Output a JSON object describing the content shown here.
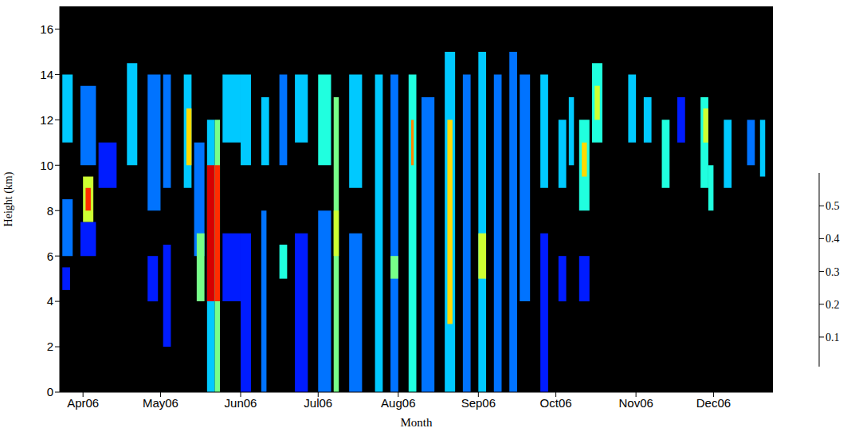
{
  "chart_data": {
    "type": "heatmap",
    "x_label": "Month",
    "y_label": "Height (km)",
    "xlim": [
      82,
      358
    ],
    "xticks": [
      {
        "value": 91,
        "label": "Apr06"
      },
      {
        "value": 121,
        "label": "May06"
      },
      {
        "value": 152,
        "label": "Jun06"
      },
      {
        "value": 182,
        "label": "Jul06"
      },
      {
        "value": 213,
        "label": "Aug06"
      },
      {
        "value": 244,
        "label": "Sep06"
      },
      {
        "value": 274,
        "label": "Oct06"
      },
      {
        "value": 305,
        "label": "Nov06"
      },
      {
        "value": 335,
        "label": "Dec06"
      }
    ],
    "ylim": [
      0,
      17
    ],
    "yticks": [
      0,
      2,
      4,
      6,
      8,
      10,
      12,
      14,
      16
    ],
    "cells": [
      [
        83,
        87,
        11,
        14,
        0.2
      ],
      [
        83,
        87,
        6,
        8.5,
        0.15
      ],
      [
        83,
        86,
        4.5,
        5.5,
        0.1
      ],
      [
        90,
        96,
        10,
        13.5,
        0.15
      ],
      [
        90,
        96,
        6,
        7.5,
        0.1
      ],
      [
        91,
        95,
        7.5,
        9.5,
        0.35
      ],
      [
        92,
        94,
        8,
        9,
        0.5
      ],
      [
        97,
        104,
        9,
        11,
        0.1
      ],
      [
        108,
        112,
        10,
        14.5,
        0.2
      ],
      [
        116,
        121,
        8,
        14,
        0.15
      ],
      [
        116,
        120,
        4,
        6,
        0.1
      ],
      [
        122,
        125,
        9,
        14,
        0.15
      ],
      [
        122,
        125,
        2,
        6.5,
        0.1
      ],
      [
        130,
        133,
        9,
        14,
        0.2
      ],
      [
        131,
        133,
        10,
        12.5,
        0.4
      ],
      [
        134,
        138,
        6,
        11,
        0.15
      ],
      [
        135,
        138,
        4,
        7,
        0.3
      ],
      [
        139,
        142,
        0,
        12,
        0.2
      ],
      [
        139,
        142,
        4,
        10,
        0.55
      ],
      [
        142,
        144,
        0,
        12,
        0.3
      ],
      [
        142,
        144,
        4,
        10,
        0.5
      ],
      [
        145,
        152,
        4,
        7,
        0.1
      ],
      [
        145,
        152,
        11,
        14,
        0.2
      ],
      [
        152,
        156,
        0,
        7,
        0.1
      ],
      [
        152,
        156,
        10,
        14,
        0.2
      ],
      [
        160,
        162,
        0,
        8,
        0.15
      ],
      [
        160,
        163,
        10,
        13,
        0.2
      ],
      [
        167,
        170,
        5,
        6.5,
        0.25
      ],
      [
        167,
        170,
        10,
        14,
        0.15
      ],
      [
        173,
        178,
        0,
        7,
        0.1
      ],
      [
        173,
        178,
        11,
        14,
        0.2
      ],
      [
        182,
        187,
        0,
        8,
        0.15
      ],
      [
        182,
        187,
        10,
        14,
        0.25
      ],
      [
        188,
        190,
        0,
        13,
        0.3
      ],
      [
        188,
        190,
        6,
        8,
        0.35
      ],
      [
        194,
        199,
        0,
        7,
        0.15
      ],
      [
        194,
        199,
        9,
        14,
        0.2
      ],
      [
        204,
        207,
        0,
        14,
        0.2
      ],
      [
        210,
        213,
        0,
        14,
        0.15
      ],
      [
        210,
        213,
        5,
        6,
        0.3
      ],
      [
        217,
        220,
        0,
        14,
        0.25
      ],
      [
        218,
        219,
        10,
        12,
        0.45
      ],
      [
        222,
        227,
        0,
        13,
        0.15
      ],
      [
        231,
        235,
        0,
        15,
        0.2
      ],
      [
        232,
        234,
        3,
        12,
        0.4
      ],
      [
        238,
        241,
        0,
        14,
        0.15
      ],
      [
        244,
        247,
        0,
        15,
        0.2
      ],
      [
        244,
        247,
        5,
        7,
        0.35
      ],
      [
        250,
        253,
        0,
        14,
        0.15
      ],
      [
        256,
        259,
        0,
        15,
        0.15
      ],
      [
        260,
        264,
        4,
        14,
        0.15
      ],
      [
        268,
        271,
        9,
        14,
        0.2
      ],
      [
        268,
        271,
        0,
        7,
        0.1
      ],
      [
        275,
        278,
        9,
        12,
        0.2
      ],
      [
        275,
        278,
        4,
        6,
        0.1
      ],
      [
        279,
        281,
        10,
        13,
        0.2
      ],
      [
        283,
        287,
        8,
        12,
        0.25
      ],
      [
        284,
        286,
        9.5,
        11,
        0.4
      ],
      [
        283,
        287,
        4,
        6,
        0.1
      ],
      [
        288,
        292,
        11,
        14.5,
        0.25
      ],
      [
        289,
        291,
        12,
        13.5,
        0.35
      ],
      [
        302,
        305,
        11,
        14,
        0.2
      ],
      [
        308,
        311,
        11,
        13,
        0.2
      ],
      [
        315,
        318,
        9,
        12,
        0.25
      ],
      [
        321,
        324,
        11,
        13,
        0.1
      ],
      [
        330,
        333,
        9,
        13,
        0.25
      ],
      [
        331,
        333,
        11,
        12.5,
        0.35
      ],
      [
        333,
        335,
        8,
        10,
        0.25
      ],
      [
        339,
        342,
        9,
        12,
        0.2
      ],
      [
        348,
        351,
        10,
        12,
        0.15
      ],
      [
        353,
        355,
        9.5,
        12,
        0.2
      ]
    ],
    "colorbar": {
      "range": [
        0.01,
        0.6
      ],
      "ticks": [
        0.1,
        0.2,
        0.3,
        0.4,
        0.5
      ]
    }
  }
}
